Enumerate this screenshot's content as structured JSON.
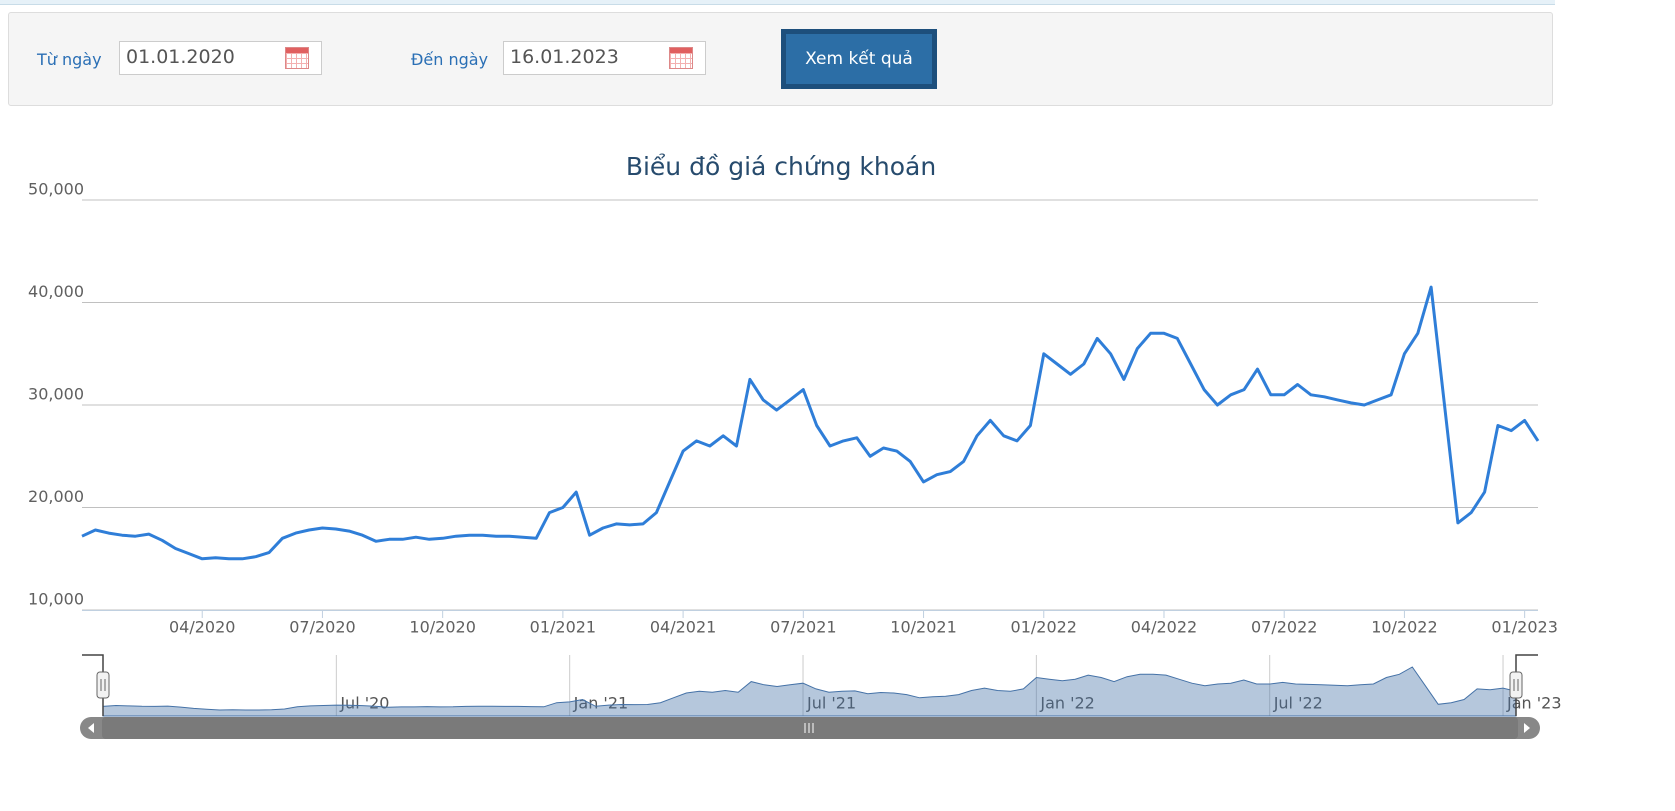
{
  "form": {
    "from_label": "Từ ngày",
    "from_value": "01.01.2020",
    "to_label": "Đến ngày",
    "to_value": "16.01.2023",
    "button": "Xem kết quả"
  },
  "chart_data": {
    "type": "line",
    "title": "Biểu đồ giá chứng khoán",
    "categories": [
      null,
      null,
      null,
      null,
      null,
      null,
      null,
      null,
      null,
      "04/2020",
      null,
      null,
      null,
      null,
      null,
      null,
      null,
      null,
      "07/2020",
      null,
      null,
      null,
      null,
      null,
      null,
      null,
      null,
      "10/2020",
      null,
      null,
      null,
      null,
      null,
      null,
      null,
      null,
      "01/2021",
      null,
      null,
      null,
      null,
      null,
      null,
      null,
      null,
      "04/2021",
      null,
      null,
      null,
      null,
      null,
      null,
      null,
      null,
      "07/2021",
      null,
      null,
      null,
      null,
      null,
      null,
      null,
      null,
      "10/2021",
      null,
      null,
      null,
      null,
      null,
      null,
      null,
      null,
      "01/2022",
      null,
      null,
      null,
      null,
      null,
      null,
      null,
      null,
      "04/2022",
      null,
      null,
      null,
      null,
      null,
      null,
      null,
      null,
      "07/2022",
      null,
      null,
      null,
      null,
      null,
      null,
      null,
      null,
      "10/2022",
      null,
      null,
      null,
      null,
      null,
      null,
      null,
      null,
      "01/2023",
      null
    ],
    "series": [
      {
        "color": "#2f7ed8",
        "values": [
          17200,
          17800,
          17500,
          17300,
          17200,
          17400,
          16800,
          16000,
          15500,
          15000,
          15100,
          15000,
          15000,
          15200,
          15600,
          17000,
          17500,
          17800,
          18000,
          17900,
          17700,
          17300,
          16700,
          16900,
          16900,
          17100,
          16900,
          17000,
          17200,
          17300,
          17300,
          17200,
          17200,
          17100,
          17000,
          19500,
          20000,
          21500,
          17300,
          18000,
          18400,
          18300,
          18400,
          19500,
          22500,
          25500,
          26500,
          26000,
          27000,
          26000,
          32500,
          30500,
          29500,
          30500,
          31500,
          28000,
          26000,
          26500,
          26800,
          25000,
          25800,
          25500,
          24500,
          22500,
          23200,
          23500,
          24500,
          27000,
          28500,
          27000,
          26500,
          28000,
          35000,
          34000,
          33000,
          34000,
          36500,
          35000,
          32500,
          35500,
          37000,
          37000,
          36500,
          34000,
          31500,
          30000,
          31000,
          31500,
          33500,
          31000,
          31000,
          32000,
          31000,
          30800,
          30500,
          30200,
          30000,
          30500,
          31000,
          35000,
          37000,
          41500,
          30000,
          18500,
          19500,
          21500,
          28000,
          27500,
          28500,
          26500
        ]
      }
    ],
    "ylim": [
      10000,
      50000
    ],
    "yticks": [
      {
        "value": 10000,
        "label": "10,000"
      },
      {
        "value": 20000,
        "label": "20,000"
      },
      {
        "value": 30000,
        "label": "30,000"
      },
      {
        "value": 40000,
        "label": "40,000"
      },
      {
        "value": 50000,
        "label": "50,000"
      }
    ],
    "grid": true,
    "navigator": {
      "labels": [
        "Jul '20",
        "Jan '21",
        "Jul '21",
        "Jan '22",
        "Jul '22",
        "Jan '23"
      ]
    }
  }
}
